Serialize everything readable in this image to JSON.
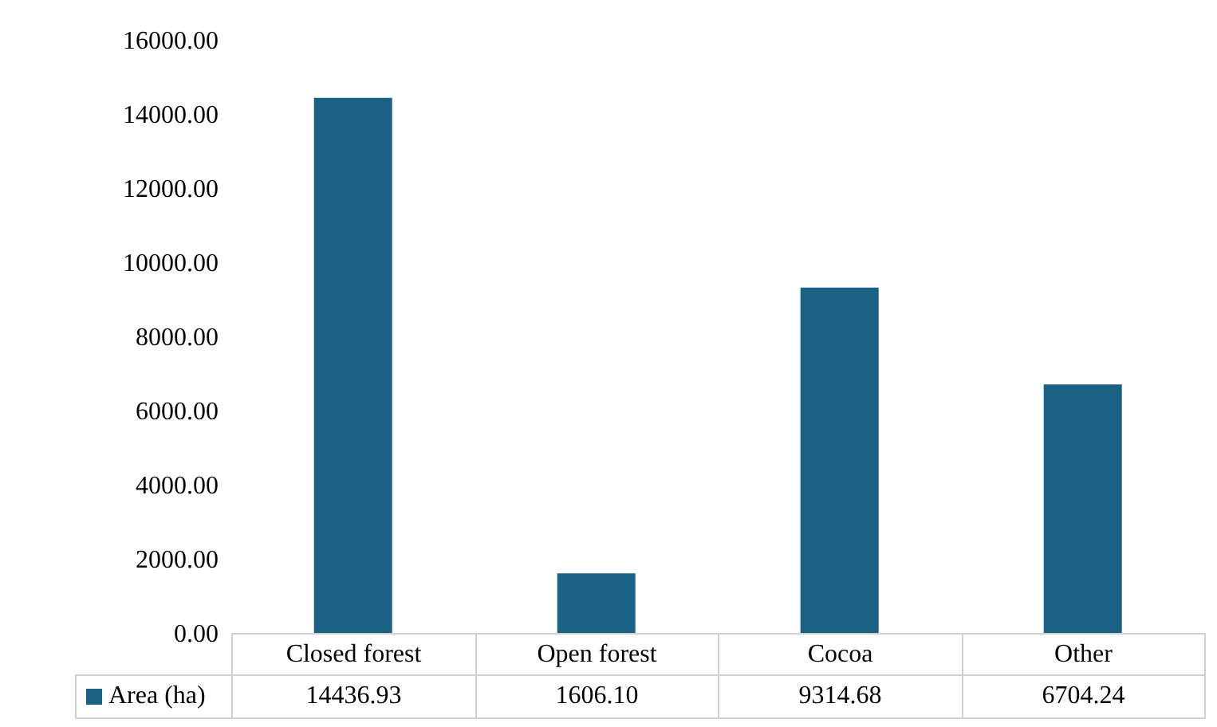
{
  "chart_data": {
    "type": "bar",
    "categories": [
      "Closed forest",
      "Open forest",
      "Cocoa",
      "Other"
    ],
    "series": [
      {
        "name": "Area (ha)",
        "color": "#1b6184",
        "values": [
          14436.93,
          1606.1,
          9314.68,
          6704.24
        ],
        "value_labels": [
          "14436.93",
          "1606.10",
          "9314.68",
          "6704.24"
        ]
      }
    ],
    "ylim": [
      0,
      16000
    ],
    "yticks": [
      {
        "value": 0,
        "label": "0.00"
      },
      {
        "value": 2000,
        "label": "2000.00"
      },
      {
        "value": 4000,
        "label": "4000.00"
      },
      {
        "value": 6000,
        "label": "6000.00"
      },
      {
        "value": 8000,
        "label": "8000.00"
      },
      {
        "value": 10000,
        "label": "10000.00"
      },
      {
        "value": 12000,
        "label": "12000.00"
      },
      {
        "value": 14000,
        "label": "14000.00"
      },
      {
        "value": 16000,
        "label": "16000.00"
      }
    ],
    "legend": "bottom",
    "grid": false
  }
}
